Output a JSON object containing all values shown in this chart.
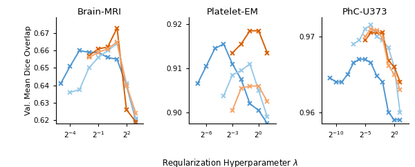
{
  "panels": [
    {
      "title": "Brain-MRI",
      "xlim_log2": [
        -5.5,
        3.8
      ],
      "xticks_log2": [
        -4,
        -1,
        2
      ],
      "ylim": [
        0.618,
        0.679
      ],
      "yticks": [
        0.62,
        0.63,
        0.64,
        0.65,
        0.66,
        0.67
      ],
      "show_ylabel": true,
      "lines": [
        {
          "x_log2": [
            -5,
            -4,
            -3,
            -2,
            -1,
            0,
            1,
            2,
            3
          ],
          "y": [
            0.641,
            0.651,
            0.66,
            0.659,
            0.659,
            0.656,
            0.655,
            0.64,
            0.62
          ],
          "color": "#4e96d1",
          "alpha": 1.0
        },
        {
          "x_log2": [
            -4,
            -3,
            -2,
            -1,
            0,
            1,
            2,
            3
          ],
          "y": [
            0.636,
            0.6375,
            0.65,
            0.656,
            0.66,
            0.664,
            0.641,
            0.621
          ],
          "color": "#97c9e8",
          "alpha": 1.0
        },
        {
          "x_log2": [
            -2,
            -1,
            0,
            1,
            2,
            3
          ],
          "y": [
            0.657,
            0.661,
            0.662,
            0.673,
            0.626,
            0.619
          ],
          "color": "#d95f02",
          "alpha": 1.0
        },
        {
          "x_log2": [
            -2,
            -1,
            0,
            1,
            2,
            3
          ],
          "y": [
            0.656,
            0.659,
            0.661,
            0.665,
            0.64,
            0.624
          ],
          "color": "#f4a46a",
          "alpha": 1.0
        }
      ]
    },
    {
      "title": "Platelet-EM",
      "xlim_log2": [
        -8.0,
        2.0
      ],
      "xticks_log2": [
        -6,
        -3,
        0
      ],
      "ylim": [
        0.8975,
        0.9215
      ],
      "yticks": [
        0.9,
        0.91,
        0.92
      ],
      "show_ylabel": false,
      "lines": [
        {
          "x_log2": [
            -7,
            -6,
            -5,
            -4,
            -3,
            -2,
            -1,
            0,
            1
          ],
          "y": [
            0.9065,
            0.9105,
            0.9145,
            0.9155,
            0.911,
            0.9075,
            0.902,
            0.9005,
            0.8975
          ],
          "color": "#4e96d1",
          "alpha": 1.0
        },
        {
          "x_log2": [
            -4,
            -3,
            -2,
            -1,
            0,
            1
          ],
          "y": [
            0.9038,
            0.9085,
            0.9095,
            0.911,
            0.905,
            0.899
          ],
          "color": "#97c9e8",
          "alpha": 1.0
        },
        {
          "x_log2": [
            -3,
            -2,
            -1,
            0,
            1
          ],
          "y": [
            0.9135,
            0.9155,
            0.9185,
            0.9185,
            0.9135
          ],
          "color": "#d95f02",
          "alpha": 1.0
        },
        {
          "x_log2": [
            -3,
            -2,
            -1,
            0,
            1
          ],
          "y": [
            0.9005,
            0.9055,
            0.906,
            0.906,
            0.9025
          ],
          "color": "#f4a46a",
          "alpha": 1.0
        }
      ]
    },
    {
      "title": "PhC-U373",
      "xlim_log2": [
        -12.5,
        2.5
      ],
      "xticks_log2": [
        -10,
        -5,
        0
      ],
      "ylim": [
        0.9585,
        0.9725
      ],
      "yticks": [
        0.96,
        0.97
      ],
      "show_ylabel": false,
      "lines": [
        {
          "x_log2": [
            -11,
            -10,
            -9,
            -8,
            -7,
            -6,
            -5,
            -4,
            -3,
            -2,
            -1,
            0,
            1
          ],
          "y": [
            0.9645,
            0.964,
            0.964,
            0.965,
            0.9665,
            0.967,
            0.967,
            0.9665,
            0.9648,
            0.964,
            0.96,
            0.959,
            0.959
          ],
          "color": "#4e96d1",
          "alpha": 1.0
        },
        {
          "x_log2": [
            -7,
            -6,
            -5,
            -4,
            -3,
            -2,
            -1,
            0,
            1
          ],
          "y": [
            0.969,
            0.9695,
            0.971,
            0.9715,
            0.97,
            0.9695,
            0.9685,
            0.966,
            0.96
          ],
          "color": "#97c9e8",
          "alpha": 1.0
        },
        {
          "x_log2": [
            -5,
            -4,
            -3,
            -2,
            -1,
            0,
            1
          ],
          "y": [
            0.9695,
            0.9705,
            0.9705,
            0.9705,
            0.9668,
            0.966,
            0.964
          ],
          "color": "#d95f02",
          "alpha": 1.0
        },
        {
          "x_log2": [
            -5,
            -4,
            -3,
            -2,
            -1,
            0,
            1
          ],
          "y": [
            0.97,
            0.971,
            0.9708,
            0.9698,
            0.9662,
            0.965,
            0.963
          ],
          "color": "#f4a46a",
          "alpha": 1.0
        }
      ]
    }
  ],
  "xlabel": "Regularization Hyperparameter $\\lambda$",
  "ylabel": "Val. Mean Dice Overlap",
  "marker": "x",
  "markersize": 4.5,
  "linewidth": 1.4
}
